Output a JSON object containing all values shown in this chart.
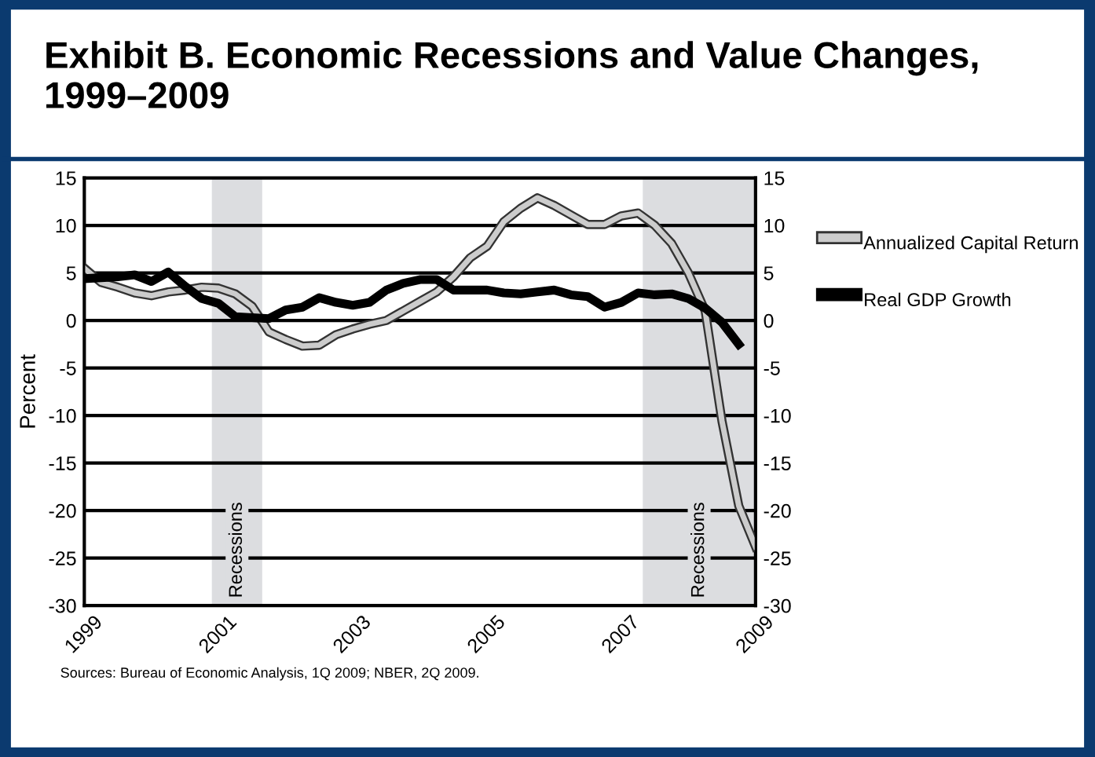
{
  "chart_data": {
    "type": "line",
    "title": "Exhibit B. Economic Recessions and Value Changes,\n1999–2009",
    "ylabel": "Percent",
    "series": [
      {
        "name": "Annualized Capital Return",
        "color": "#cccccc",
        "x": [
          1999.0,
          1999.25,
          1999.5,
          1999.75,
          2000.0,
          2000.25,
          2000.5,
          2000.75,
          2001.0,
          2001.25,
          2001.5,
          2001.75,
          2002.0,
          2002.25,
          2002.5,
          2002.75,
          2003.0,
          2003.25,
          2003.5,
          2003.75,
          2004.0,
          2004.25,
          2004.5,
          2004.75,
          2005.0,
          2005.25,
          2005.5,
          2005.75,
          2006.0,
          2006.25,
          2006.5,
          2006.75,
          2007.0,
          2007.25,
          2007.5,
          2007.75,
          2008.0,
          2008.25,
          2008.5,
          2008.75,
          2009.0
        ],
        "values": [
          5.5,
          4.0,
          3.5,
          2.9,
          2.6,
          3.0,
          3.2,
          3.5,
          3.4,
          2.8,
          1.5,
          -1.2,
          -2.0,
          -2.7,
          -2.6,
          -1.5,
          -0.9,
          -0.4,
          0.0,
          1.0,
          2.0,
          3.0,
          4.6,
          6.6,
          7.8,
          10.4,
          11.8,
          12.9,
          12.1,
          11.1,
          10.1,
          10.1,
          11.0,
          11.3,
          10.0,
          8.1,
          5.0,
          1.0,
          -10.6,
          -19.5,
          -23.8
        ]
      },
      {
        "name": "Real GDP Growth",
        "color": "#000000",
        "x": [
          1999.0,
          1999.25,
          1999.5,
          1999.75,
          2000.0,
          2000.25,
          2000.5,
          2000.75,
          2001.0,
          2001.25,
          2001.5,
          2001.75,
          2002.0,
          2002.25,
          2002.5,
          2002.75,
          2003.0,
          2003.25,
          2003.5,
          2003.75,
          2004.0,
          2004.25,
          2004.5,
          2004.75,
          2005.0,
          2005.25,
          2005.5,
          2005.75,
          2006.0,
          2006.25,
          2006.5,
          2006.75,
          2007.0,
          2007.25,
          2007.5,
          2007.75,
          2008.0,
          2008.25,
          2008.5,
          2008.75
        ],
        "values": [
          4.4,
          4.5,
          4.6,
          4.8,
          4.1,
          5.1,
          3.6,
          2.3,
          1.8,
          0.4,
          0.3,
          0.2,
          1.1,
          1.4,
          2.4,
          1.9,
          1.6,
          1.9,
          3.2,
          3.9,
          4.3,
          4.3,
          3.2,
          3.2,
          3.2,
          2.9,
          2.8,
          3.0,
          3.2,
          2.7,
          2.5,
          1.4,
          1.9,
          2.9,
          2.7,
          2.8,
          2.3,
          1.3,
          -0.2,
          -2.5
        ]
      }
    ],
    "bands": [
      {
        "axis": "x",
        "from": 2000.9,
        "to": 2001.65,
        "label": "Recessions",
        "color": "#dcdde0"
      },
      {
        "axis": "x",
        "from": 2007.32,
        "to": 2009.0,
        "label": "Recessions",
        "color": "#dcdde0"
      }
    ],
    "xlim": [
      1999,
      2009
    ],
    "xticks": [
      1999,
      2001,
      2003,
      2005,
      2007,
      2009
    ],
    "ylim": [
      -30,
      15
    ],
    "yticks": [
      -30,
      -25,
      -20,
      -15,
      -10,
      -5,
      0,
      5,
      10,
      15
    ],
    "y2lim": [
      -30,
      15
    ],
    "y2ticks": [
      -30,
      -25,
      -20,
      -15,
      -10,
      -5,
      0,
      5,
      10,
      15
    ],
    "grid": "y",
    "legend": "right",
    "annotations": [
      "Sources: Bureau of Economic Analysis, 1Q 2009; NBER, 2Q 2009."
    ]
  }
}
